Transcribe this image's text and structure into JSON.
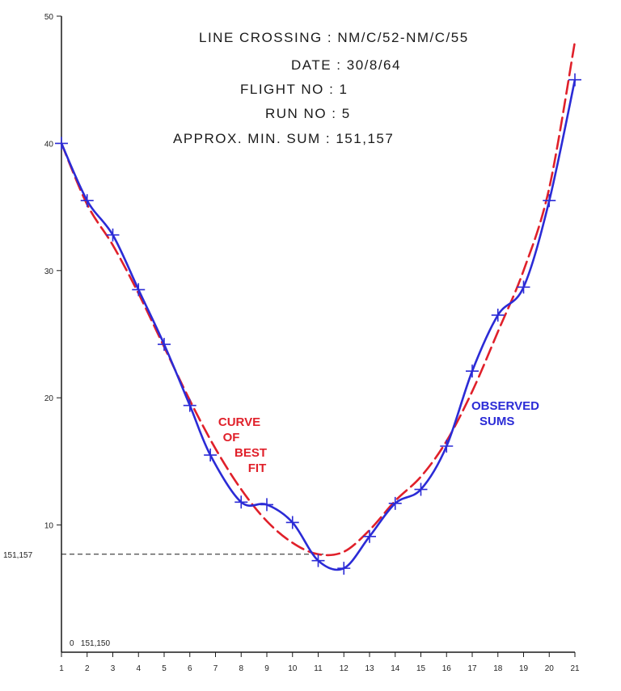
{
  "header": {
    "line1": "LINE CROSSING : NM/C/52-NM/C/55",
    "line2": "DATE : 30/8/64",
    "line3": "FLIGHT NO : 1",
    "line4": "RUN NO : 5",
    "line5": "APPROX. MIN. SUM : 151,157"
  },
  "annotations": {
    "curve_label": [
      "CURVE",
      "OF",
      "BEST",
      "FIT"
    ],
    "observed_label": [
      "OBSERVED",
      "SUMS"
    ],
    "min_reference_label": "151,157",
    "origin_label": "0   151,150"
  },
  "colors": {
    "observed": "#2b2bd6",
    "fit": "#e0202a",
    "axis": "#1a1a1a"
  },
  "chart_data": {
    "type": "line",
    "title": "LINE CROSSING : NM/C/52-NM/C/55",
    "xlabel": "",
    "ylabel": "",
    "x_ticks": [
      1,
      2,
      3,
      4,
      5,
      6,
      7,
      8,
      9,
      10,
      11,
      12,
      13,
      14,
      15,
      16,
      17,
      18,
      19,
      20,
      21
    ],
    "y_ticks": [
      10,
      20,
      30,
      40,
      50
    ],
    "xlim": [
      1,
      21
    ],
    "ylim": [
      0,
      50
    ],
    "min_reference_y": 7.7,
    "series": [
      {
        "name": "OBSERVED SUMS",
        "style": "solid",
        "color": "#2b2bd6",
        "markers": "plus",
        "x": [
          1,
          2,
          3,
          4,
          5,
          6,
          6.8,
          8,
          9,
          10,
          11,
          12,
          13,
          14,
          15,
          16,
          17,
          18,
          19,
          20,
          21
        ],
        "y": [
          40,
          35.5,
          32.8,
          28.5,
          24.2,
          19.4,
          15.5,
          11.8,
          11.6,
          10.2,
          7.2,
          6.6,
          9.1,
          11.7,
          12.8,
          16.2,
          22.1,
          26.5,
          28.7,
          35.5,
          45
        ]
      },
      {
        "name": "CURVE OF BEST FIT",
        "style": "dashed",
        "color": "#e0202a",
        "x": [
          1,
          2,
          3,
          4,
          5,
          6,
          7,
          8,
          9,
          10,
          11,
          12,
          13,
          14,
          15,
          16,
          17,
          18,
          19,
          20,
          21
        ],
        "y": [
          40,
          35.2,
          32.0,
          28.2,
          24.0,
          19.8,
          16.0,
          12.8,
          10.3,
          8.6,
          7.7,
          7.9,
          9.6,
          11.9,
          13.8,
          16.6,
          20.5,
          25.2,
          30.0,
          36.5,
          48
        ]
      }
    ]
  }
}
